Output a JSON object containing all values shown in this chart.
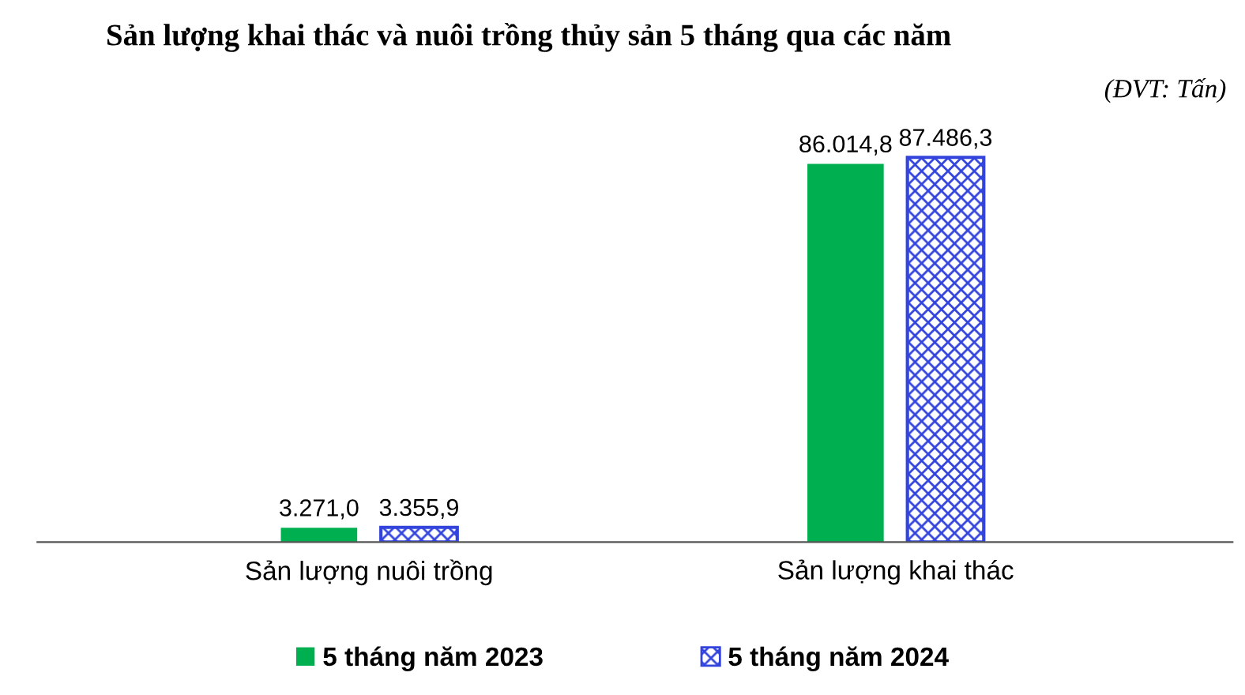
{
  "chart_data": {
    "type": "bar",
    "title": "Sản lượng khai thác và nuôi trồng thủy sản 5 tháng qua các năm",
    "annotations": [
      "(ĐVT: Tấn)"
    ],
    "categories": [
      "Sản lượng nuôi trồng",
      "Sản lượng khai thác"
    ],
    "series": [
      {
        "name": "5 tháng năm 2023",
        "color": "#00b050",
        "values": [
          3271.0,
          86014.8
        ],
        "value_labels": [
          "3.271,0",
          "86.014,8"
        ]
      },
      {
        "name": "5 tháng năm 2024",
        "color": "#3344dd",
        "values": [
          3355.9,
          87486.3
        ],
        "value_labels": [
          "3.355,9",
          "87.486,3"
        ]
      }
    ],
    "legend": "bottom",
    "grid": false
  }
}
